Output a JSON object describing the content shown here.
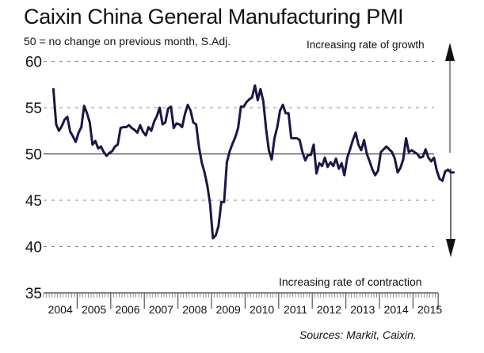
{
  "chart_data": {
    "type": "line",
    "title": "Caixin China General Manufacturing PMI",
    "subtitle": "50 = no change on previous month, S.Adj.",
    "annotation_top": "Increasing rate of growth",
    "annotation_bottom": "Increasing rate of contraction",
    "source": "Sources: Markit, Caixin.",
    "ylim": [
      35,
      60
    ],
    "yticks": [
      "35",
      "40",
      "45",
      "50",
      "55",
      "60"
    ],
    "xticks": [
      "2004",
      "2005",
      "2006",
      "2007",
      "2008",
      "2009",
      "2010",
      "2011",
      "2012",
      "2013",
      "2014",
      "2015"
    ],
    "x_start": "2004-04",
    "x_end": "2015-09",
    "reference_line": 50,
    "grid": true,
    "line_color": "#1a1646",
    "series": [
      {
        "name": "PMI",
        "values": [
          57.0,
          53.2,
          52.5,
          53.0,
          53.7,
          54.0,
          52.4,
          51.9,
          51.3,
          52.3,
          52.9,
          55.2,
          54.4,
          53.4,
          51.0,
          51.4,
          50.6,
          50.8,
          50.2,
          49.8,
          50.1,
          50.3,
          50.8,
          51.0,
          52.8,
          52.9,
          52.9,
          53.1,
          52.8,
          52.6,
          52.3,
          53.1,
          52.4,
          52.0,
          52.9,
          52.5,
          53.5,
          54.1,
          55.0,
          53.2,
          53.4,
          54.9,
          55.1,
          52.8,
          53.3,
          53.2,
          52.9,
          54.3,
          55.3,
          54.7,
          53.4,
          53.2,
          50.8,
          49.1,
          48.0,
          46.6,
          44.6,
          40.9,
          41.2,
          42.2,
          44.8,
          44.8,
          49.1,
          50.3,
          51.1,
          51.8,
          52.8,
          55.1,
          55.1,
          55.6,
          55.9,
          56.1,
          57.4,
          55.8,
          57.0,
          55.7,
          52.7,
          50.4,
          49.4,
          51.7,
          52.9,
          54.7,
          55.3,
          54.4,
          54.4,
          51.7,
          51.7,
          51.7,
          51.5,
          50.2,
          49.3,
          49.9,
          49.9,
          51.0,
          47.9,
          49.0,
          48.7,
          49.6,
          48.6,
          49.1,
          48.7,
          49.5,
          48.4,
          49.0,
          47.7,
          49.6,
          50.5,
          51.5,
          52.3,
          51.0,
          50.4,
          51.5,
          50.0,
          49.2,
          48.3,
          47.7,
          48.2,
          50.2,
          50.5,
          50.8,
          50.5,
          50.2,
          49.5,
          48.0,
          48.5,
          49.4,
          51.7,
          50.2,
          50.4,
          50.2,
          50.0,
          49.6,
          49.7,
          50.5,
          49.6,
          49.2,
          49.6,
          48.2,
          47.3,
          47.1,
          48.1,
          48.3,
          48.0,
          48.0
        ]
      }
    ]
  }
}
